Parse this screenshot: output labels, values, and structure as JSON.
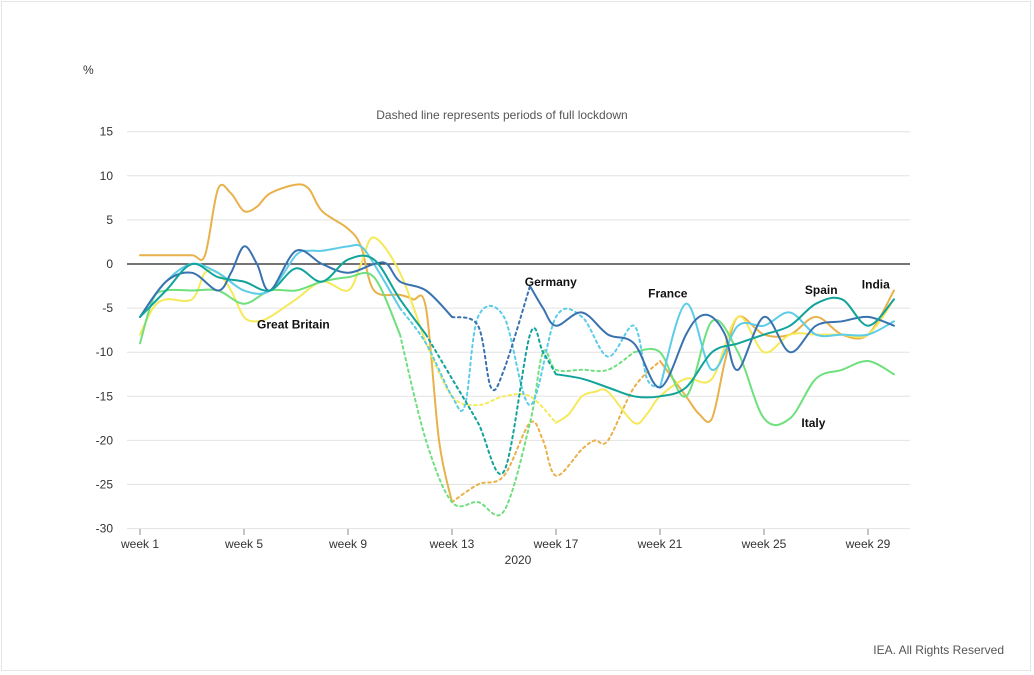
{
  "chart_data": {
    "type": "line",
    "y_unit": "%",
    "annotation": "Dashed line represents periods of full lockdown",
    "xlabel": "2020",
    "x_tick_labels": [
      "week 1",
      "week 5",
      "week 9",
      "week 13",
      "week 17",
      "week 21",
      "week 25",
      "week 29"
    ],
    "x_tick_values": [
      1,
      5,
      9,
      13,
      17,
      21,
      25,
      29
    ],
    "xlim": [
      0.5,
      30
    ],
    "ylim": [
      -30,
      15
    ],
    "y_ticks": [
      15,
      10,
      5,
      0,
      -5,
      -10,
      -15,
      -20,
      -25,
      -30
    ],
    "grid": true,
    "series": [
      {
        "name": "India",
        "color": "#e9b14a",
        "x": [
          1,
          2,
          3,
          3.5,
          4,
          4.5,
          5,
          5.5,
          6,
          7,
          7.5,
          8,
          9,
          9.5,
          10,
          11,
          11.5,
          12,
          12.5,
          13,
          14,
          15,
          16,
          16.5,
          17,
          18,
          18.5,
          19,
          20,
          21,
          22,
          22.5,
          23,
          23.5,
          24,
          25,
          26,
          27,
          28,
          29,
          30
        ],
        "y": [
          1,
          1,
          1,
          1,
          8.5,
          8,
          6,
          6.5,
          8,
          9,
          8.5,
          6,
          4,
          2,
          -3,
          -3.5,
          -4,
          -5,
          -20,
          -27,
          -25,
          -24,
          -18,
          -20,
          -24,
          -21,
          -20,
          -20,
          -14,
          -11,
          -15,
          -17,
          -17.5,
          -11,
          -6,
          -8,
          -8,
          -6,
          -8,
          -8,
          -3
        ],
        "lockdown": [
          13,
          21
        ]
      },
      {
        "name": "Great Britain",
        "color": "#f5e95a",
        "x": [
          1,
          1.5,
          2,
          3,
          3.5,
          4,
          4.5,
          5,
          5.5,
          6,
          7,
          8,
          9,
          9.5,
          10,
          11,
          12,
          13,
          14,
          15,
          16,
          17,
          17.5,
          18,
          18.5,
          19,
          20,
          20.5,
          21,
          22,
          23,
          24,
          25,
          26,
          27,
          28,
          29,
          30
        ],
        "y": [
          -8,
          -5,
          -4,
          -4,
          -1,
          -1,
          -3,
          -6,
          -6.5,
          -6,
          -4,
          -2,
          -3,
          0,
          3,
          -1,
          -9,
          -15,
          -16,
          -15,
          -15,
          -18,
          -17,
          -15,
          -14.5,
          -14.5,
          -18,
          -17,
          -15,
          -13,
          -13,
          -6,
          -10,
          -8,
          -8,
          -8,
          -8,
          -4
        ],
        "lockdown": [
          12,
          17
        ]
      },
      {
        "name": "Italy",
        "color": "#6ee07e",
        "x": [
          1,
          1.5,
          2,
          3,
          4,
          5,
          6,
          7,
          8,
          9,
          10,
          11,
          12,
          13,
          14,
          15,
          16,
          16.5,
          17,
          18,
          19,
          20,
          21,
          22,
          23,
          24,
          25,
          26,
          27,
          28,
          29,
          30
        ],
        "y": [
          -9,
          -4,
          -3,
          -3,
          -3,
          -4.5,
          -3,
          -3,
          -2,
          -1.5,
          -1.5,
          -8,
          -20,
          -27,
          -27,
          -28,
          -18,
          -10,
          -12,
          -12,
          -12,
          -10,
          -10,
          -15,
          -6.5,
          -10,
          -17.5,
          -17.5,
          -13,
          -12,
          -11,
          -12.5
        ],
        "lockdown": [
          11,
          20
        ]
      },
      {
        "name": "France",
        "color": "#5ccce8",
        "x": [
          1,
          2,
          3,
          4,
          5,
          6,
          7,
          7.5,
          8,
          9,
          9.5,
          10,
          11,
          12,
          13,
          13.5,
          14,
          15,
          16,
          17,
          18,
          19,
          20,
          20.5,
          21,
          22,
          23,
          24,
          25,
          26,
          27,
          28,
          29,
          30
        ],
        "y": [
          -6,
          -2,
          0,
          -1,
          -3,
          -3,
          1,
          1.5,
          1.5,
          2,
          2,
          0,
          -5,
          -9,
          -15,
          -16,
          -6,
          -6,
          -16,
          -6,
          -6,
          -10.5,
          -7,
          -13,
          -14,
          -4.5,
          -12,
          -7,
          -7,
          -5.5,
          -8,
          -8,
          -8,
          -6.5
        ],
        "lockdown": [
          11,
          21
        ]
      },
      {
        "name": "Germany",
        "color": "#3a72b0",
        "x": [
          1,
          2,
          3,
          4,
          4.5,
          5,
          5.5,
          6,
          7,
          8,
          9,
          10,
          10.5,
          11,
          12,
          13,
          14,
          14.5,
          15,
          16,
          16.5,
          17,
          18,
          19,
          20,
          21,
          22,
          22.5,
          23,
          23.5,
          24,
          25,
          26,
          27,
          28,
          29,
          30
        ],
        "y": [
          -6,
          -2,
          -1,
          -3,
          -1,
          2,
          0,
          -3,
          1.5,
          0,
          -1,
          0,
          0,
          -2,
          -3,
          -6,
          -7,
          -14,
          -12,
          -2.5,
          -5,
          -7,
          -5.5,
          -8,
          -9,
          -14,
          -8,
          -6,
          -6,
          -8,
          -12,
          -6,
          -10,
          -7,
          -6.5,
          -6,
          -7
        ],
        "lockdown": [
          13,
          16
        ]
      },
      {
        "name": "Spain",
        "color": "#12a39b",
        "x": [
          1,
          2,
          3,
          4,
          5,
          6,
          7,
          8,
          9,
          10,
          11,
          12,
          13,
          14,
          15,
          16,
          16.5,
          17,
          18,
          19,
          20,
          21,
          22,
          23,
          24,
          25,
          26,
          27,
          28,
          29,
          30
        ],
        "y": [
          -6,
          -3,
          0,
          -1.5,
          -2,
          -3,
          -0.5,
          -2,
          0.5,
          0.5,
          -4,
          -8,
          -13,
          -18,
          -23.5,
          -8,
          -10,
          -12.5,
          -13,
          -14,
          -15,
          -15,
          -14,
          -10,
          -9,
          -8,
          -7,
          -4.5,
          -4,
          -7,
          -4
        ],
        "lockdown": [
          12,
          17
        ]
      }
    ],
    "series_labels": [
      {
        "name": "Great Britain",
        "x": 6.9,
        "y": -7.3
      },
      {
        "name": "Germany",
        "x": 16.8,
        "y": -2.5
      },
      {
        "name": "France",
        "x": 21.3,
        "y": -3.8
      },
      {
        "name": "Spain",
        "x": 27.2,
        "y": -3.4
      },
      {
        "name": "India",
        "x": 29.3,
        "y": -2.8
      },
      {
        "name": "Italy",
        "x": 26.9,
        "y": -18.5
      }
    ]
  },
  "footer": {
    "credit": "IEA. All Rights Reserved"
  }
}
